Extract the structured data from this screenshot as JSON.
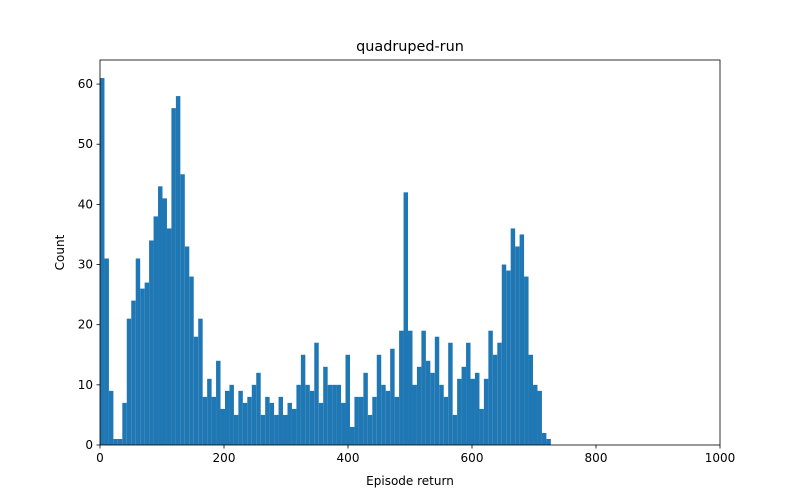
{
  "chart_data": {
    "type": "bar",
    "title": "quadruped-run",
    "xlabel": "Episode return",
    "ylabel": "Count",
    "xlim": [
      0,
      1000
    ],
    "ylim": [
      0,
      64
    ],
    "x_ticks": [
      "0",
      "200",
      "400",
      "600",
      "800",
      "1000"
    ],
    "y_ticks": [
      "0",
      "10",
      "20",
      "30",
      "40",
      "50",
      "60"
    ],
    "x_tick_values": [
      0,
      200,
      400,
      600,
      800,
      1000
    ],
    "y_tick_values": [
      0,
      10,
      20,
      30,
      40,
      50,
      60
    ],
    "grid": false,
    "bar_color": "#1f77b4",
    "bin_start": 0,
    "bin_width": 7.2,
    "counts": [
      61,
      31,
      9,
      1,
      1,
      7,
      21,
      24,
      31,
      26,
      27,
      34,
      38,
      43,
      41,
      36,
      56,
      58,
      45,
      33,
      28,
      18,
      21,
      8,
      11,
      8,
      14,
      6,
      9,
      10,
      5,
      9,
      7,
      8,
      10,
      12,
      5,
      8,
      7,
      5,
      8,
      5,
      7,
      6,
      10,
      15,
      10,
      9,
      17,
      7,
      13,
      10,
      10,
      10,
      7,
      15,
      3,
      8,
      8,
      12,
      5,
      8,
      15,
      10,
      9,
      16,
      8,
      19,
      42,
      19,
      10,
      13,
      19,
      14,
      12,
      18,
      10,
      8,
      17,
      5,
      11,
      13,
      17,
      11,
      12,
      6,
      11,
      19,
      15,
      17,
      30,
      29,
      36,
      33,
      35,
      28,
      15,
      10,
      9,
      2,
      1
    ]
  }
}
